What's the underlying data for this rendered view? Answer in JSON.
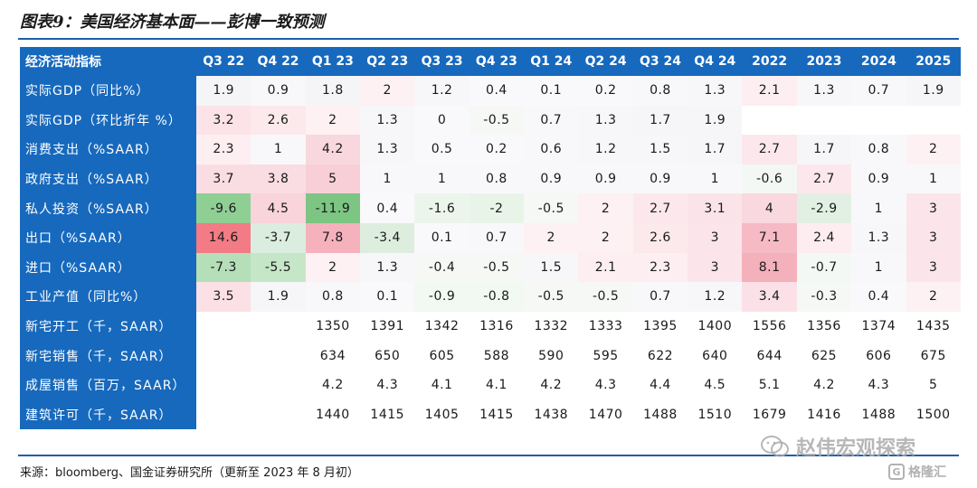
{
  "title": "图表9：美国经济基本面——彭博一致预测",
  "table": {
    "corner_label": "经济活动指标",
    "columns": [
      "Q3 22",
      "Q4 22",
      "Q1 23",
      "Q2 23",
      "Q3 23",
      "Q4 23",
      "Q1 24",
      "Q2 24",
      "Q3 24",
      "Q4 24",
      "2022",
      "2023",
      "2024",
      "2025"
    ],
    "rows": [
      {
        "label": "实际GDP（同比%）",
        "cells": [
          {
            "v": "1.9",
            "bg": "#f5f5f7"
          },
          {
            "v": "0.9",
            "bg": "#f8f8fa"
          },
          {
            "v": "1.8",
            "bg": "#f5f5f7"
          },
          {
            "v": "2",
            "bg": "#fdf1f3"
          },
          {
            "v": "1.2",
            "bg": "#f7f7f9"
          },
          {
            "v": "0.4",
            "bg": "#f9f9fb"
          },
          {
            "v": "0.1",
            "bg": "#f9f9fb"
          },
          {
            "v": "0.2",
            "bg": "#f9f9fb"
          },
          {
            "v": "0.8",
            "bg": "#f8f8fa"
          },
          {
            "v": "1.3",
            "bg": "#f7f7f9"
          },
          {
            "v": "2.1",
            "bg": "#fdeef1"
          },
          {
            "v": "1.3",
            "bg": "#f7f7f9"
          },
          {
            "v": "0.7",
            "bg": "#f8f8fa"
          },
          {
            "v": "1.9",
            "bg": "#f6f6f8"
          }
        ]
      },
      {
        "label": "实际GDP（环比折年 %）",
        "cells": [
          {
            "v": "3.2",
            "bg": "#fbe3e8"
          },
          {
            "v": "2.6",
            "bg": "#fce9ec"
          },
          {
            "v": "2",
            "bg": "#fdf1f3"
          },
          {
            "v": "1.3",
            "bg": "#f7f7f9"
          },
          {
            "v": "0",
            "bg": "#f9f9fb"
          },
          {
            "v": "-0.5",
            "bg": "#f5f8f5"
          },
          {
            "v": "0.7",
            "bg": "#f8f8fa"
          },
          {
            "v": "1.3",
            "bg": "#f7f7f9"
          },
          {
            "v": "1.7",
            "bg": "#f6f6f8"
          },
          {
            "v": "1.9",
            "bg": "#f6f6f8"
          },
          {
            "v": "",
            "bg": "#ffffff"
          },
          {
            "v": "",
            "bg": "#ffffff"
          },
          {
            "v": "",
            "bg": "#ffffff"
          },
          {
            "v": "",
            "bg": "#ffffff"
          }
        ]
      },
      {
        "label": "消费支出（%SAAR）",
        "cells": [
          {
            "v": "2.3",
            "bg": "#fdeef1"
          },
          {
            "v": "1",
            "bg": "#f8f8fa"
          },
          {
            "v": "4.2",
            "bg": "#f9d7de"
          },
          {
            "v": "1.3",
            "bg": "#f7f7f9"
          },
          {
            "v": "0.5",
            "bg": "#f9f9fb"
          },
          {
            "v": "0.2",
            "bg": "#f9f9fb"
          },
          {
            "v": "0.6",
            "bg": "#f8f8fa"
          },
          {
            "v": "1.2",
            "bg": "#f7f7f9"
          },
          {
            "v": "1.5",
            "bg": "#f7f7f9"
          },
          {
            "v": "1.7",
            "bg": "#f6f6f8"
          },
          {
            "v": "2.7",
            "bg": "#fce8ec"
          },
          {
            "v": "1.7",
            "bg": "#f6f6f8"
          },
          {
            "v": "0.8",
            "bg": "#f8f8fa"
          },
          {
            "v": "2",
            "bg": "#fdf1f3"
          }
        ]
      },
      {
        "label": "政府支出（%SAAR）",
        "cells": [
          {
            "v": "3.7",
            "bg": "#fadde3"
          },
          {
            "v": "3.8",
            "bg": "#fadde3"
          },
          {
            "v": "5",
            "bg": "#f8cfd7"
          },
          {
            "v": "1",
            "bg": "#f8f8fa"
          },
          {
            "v": "1",
            "bg": "#f8f8fa"
          },
          {
            "v": "0.8",
            "bg": "#f8f8fa"
          },
          {
            "v": "0.9",
            "bg": "#f8f8fa"
          },
          {
            "v": "0.9",
            "bg": "#f8f8fa"
          },
          {
            "v": "0.9",
            "bg": "#f8f8fa"
          },
          {
            "v": "1",
            "bg": "#f8f8fa"
          },
          {
            "v": "-0.6",
            "bg": "#f4f8f4"
          },
          {
            "v": "2.7",
            "bg": "#fce8ec"
          },
          {
            "v": "0.9",
            "bg": "#f8f8fa"
          },
          {
            "v": "1",
            "bg": "#f8f8fa"
          }
        ]
      },
      {
        "label": "私人投资（%SAAR）",
        "cells": [
          {
            "v": "-9.6",
            "bg": "#8fcf94"
          },
          {
            "v": "4.5",
            "bg": "#f9d4db"
          },
          {
            "v": "-11.9",
            "bg": "#7cc583"
          },
          {
            "v": "0.4",
            "bg": "#f9f9fb"
          },
          {
            "v": "-1.6",
            "bg": "#ecf5ec"
          },
          {
            "v": "-2",
            "bg": "#e9f4e9"
          },
          {
            "v": "-0.5",
            "bg": "#f5f8f5"
          },
          {
            "v": "2",
            "bg": "#fdf1f3"
          },
          {
            "v": "2.7",
            "bg": "#fce8ec"
          },
          {
            "v": "3.1",
            "bg": "#fbe4e9"
          },
          {
            "v": "4",
            "bg": "#f9d8df"
          },
          {
            "v": "-2.9",
            "bg": "#e1f0e2"
          },
          {
            "v": "1",
            "bg": "#f8f8fa"
          },
          {
            "v": "3",
            "bg": "#fbe5ea"
          }
        ]
      },
      {
        "label": "出口（%SAAR）",
        "cells": [
          {
            "v": "14.6",
            "bg": "#f27b85"
          },
          {
            "v": "-3.7",
            "bg": "#dbedde"
          },
          {
            "v": "7.8",
            "bg": "#f5b2bd"
          },
          {
            "v": "-3.4",
            "bg": "#ddeedf"
          },
          {
            "v": "0.1",
            "bg": "#f9f9fb"
          },
          {
            "v": "0.7",
            "bg": "#f8f8fa"
          },
          {
            "v": "2",
            "bg": "#fdf1f3"
          },
          {
            "v": "2",
            "bg": "#fdf1f3"
          },
          {
            "v": "2.6",
            "bg": "#fce9ec"
          },
          {
            "v": "3",
            "bg": "#fbe5ea"
          },
          {
            "v": "7.1",
            "bg": "#f6bac4"
          },
          {
            "v": "2.4",
            "bg": "#fdedf0"
          },
          {
            "v": "1.3",
            "bg": "#f7f7f9"
          },
          {
            "v": "3",
            "bg": "#fbe5ea"
          }
        ]
      },
      {
        "label": "进口（%SAAR）",
        "cells": [
          {
            "v": "-7.3",
            "bg": "#b5dfb8"
          },
          {
            "v": "-5.5",
            "bg": "#c6e6c8"
          },
          {
            "v": "2",
            "bg": "#fdf1f3"
          },
          {
            "v": "1.3",
            "bg": "#f7f7f9"
          },
          {
            "v": "-0.4",
            "bg": "#f6f8f6"
          },
          {
            "v": "-0.5",
            "bg": "#f5f8f5"
          },
          {
            "v": "1.5",
            "bg": "#f7f7f9"
          },
          {
            "v": "2.1",
            "bg": "#fdeef1"
          },
          {
            "v": "2.3",
            "bg": "#fdeef1"
          },
          {
            "v": "3",
            "bg": "#fbe5ea"
          },
          {
            "v": "8.1",
            "bg": "#f4b0bb"
          },
          {
            "v": "-0.7",
            "bg": "#f4f8f4"
          },
          {
            "v": "1",
            "bg": "#f8f8fa"
          },
          {
            "v": "3",
            "bg": "#fbe5ea"
          }
        ]
      },
      {
        "label": "工业产值（同比%）",
        "cells": [
          {
            "v": "3.5",
            "bg": "#fbe0e6"
          },
          {
            "v": "1.9",
            "bg": "#f6f6f8"
          },
          {
            "v": "0.8",
            "bg": "#f8f8fa"
          },
          {
            "v": "0.1",
            "bg": "#f9f9fb"
          },
          {
            "v": "-0.9",
            "bg": "#f2f8f2"
          },
          {
            "v": "-0.8",
            "bg": "#f2f8f2"
          },
          {
            "v": "-0.5",
            "bg": "#f5f8f5"
          },
          {
            "v": "-0.5",
            "bg": "#f5f8f5"
          },
          {
            "v": "0.7",
            "bg": "#f8f8fa"
          },
          {
            "v": "1.2",
            "bg": "#f7f7f9"
          },
          {
            "v": "3.4",
            "bg": "#fbe1e7"
          },
          {
            "v": "-0.3",
            "bg": "#f6f8f6"
          },
          {
            "v": "0.4",
            "bg": "#f9f9fb"
          },
          {
            "v": "2",
            "bg": "#fdf1f3"
          }
        ]
      },
      {
        "label": "新宅开工（千，SAAR）",
        "cells": [
          {
            "v": "",
            "bg": "#ffffff"
          },
          {
            "v": "",
            "bg": "#ffffff"
          },
          {
            "v": "1350",
            "bg": "#ffffff"
          },
          {
            "v": "1391",
            "bg": "#ffffff"
          },
          {
            "v": "1342",
            "bg": "#ffffff"
          },
          {
            "v": "1316",
            "bg": "#ffffff"
          },
          {
            "v": "1332",
            "bg": "#ffffff"
          },
          {
            "v": "1333",
            "bg": "#ffffff"
          },
          {
            "v": "1395",
            "bg": "#ffffff"
          },
          {
            "v": "1400",
            "bg": "#ffffff"
          },
          {
            "v": "1556",
            "bg": "#ffffff"
          },
          {
            "v": "1356",
            "bg": "#ffffff"
          },
          {
            "v": "1374",
            "bg": "#ffffff"
          },
          {
            "v": "1435",
            "bg": "#ffffff"
          }
        ]
      },
      {
        "label": "新宅销售（千，SAAR）",
        "cells": [
          {
            "v": "",
            "bg": "#ffffff"
          },
          {
            "v": "",
            "bg": "#ffffff"
          },
          {
            "v": "634",
            "bg": "#ffffff"
          },
          {
            "v": "650",
            "bg": "#ffffff"
          },
          {
            "v": "605",
            "bg": "#ffffff"
          },
          {
            "v": "588",
            "bg": "#ffffff"
          },
          {
            "v": "590",
            "bg": "#ffffff"
          },
          {
            "v": "595",
            "bg": "#ffffff"
          },
          {
            "v": "622",
            "bg": "#ffffff"
          },
          {
            "v": "640",
            "bg": "#ffffff"
          },
          {
            "v": "644",
            "bg": "#ffffff"
          },
          {
            "v": "625",
            "bg": "#ffffff"
          },
          {
            "v": "606",
            "bg": "#ffffff"
          },
          {
            "v": "675",
            "bg": "#ffffff"
          }
        ]
      },
      {
        "label": "成屋销售（百万，SAAR）",
        "cells": [
          {
            "v": "",
            "bg": "#ffffff"
          },
          {
            "v": "",
            "bg": "#ffffff"
          },
          {
            "v": "4.2",
            "bg": "#ffffff"
          },
          {
            "v": "4.3",
            "bg": "#ffffff"
          },
          {
            "v": "4.1",
            "bg": "#ffffff"
          },
          {
            "v": "4.1",
            "bg": "#ffffff"
          },
          {
            "v": "4.2",
            "bg": "#ffffff"
          },
          {
            "v": "4.3",
            "bg": "#ffffff"
          },
          {
            "v": "4.4",
            "bg": "#ffffff"
          },
          {
            "v": "4.5",
            "bg": "#ffffff"
          },
          {
            "v": "5.1",
            "bg": "#ffffff"
          },
          {
            "v": "4.2",
            "bg": "#ffffff"
          },
          {
            "v": "4.3",
            "bg": "#ffffff"
          },
          {
            "v": "5",
            "bg": "#ffffff"
          }
        ]
      },
      {
        "label": "建筑许可（千，SAAR）",
        "cells": [
          {
            "v": "",
            "bg": "#ffffff"
          },
          {
            "v": "",
            "bg": "#ffffff"
          },
          {
            "v": "1440",
            "bg": "#ffffff"
          },
          {
            "v": "1415",
            "bg": "#ffffff"
          },
          {
            "v": "1405",
            "bg": "#ffffff"
          },
          {
            "v": "1415",
            "bg": "#ffffff"
          },
          {
            "v": "1438",
            "bg": "#ffffff"
          },
          {
            "v": "1470",
            "bg": "#ffffff"
          },
          {
            "v": "1488",
            "bg": "#ffffff"
          },
          {
            "v": "1510",
            "bg": "#ffffff"
          },
          {
            "v": "1679",
            "bg": "#ffffff"
          },
          {
            "v": "1416",
            "bg": "#ffffff"
          },
          {
            "v": "1488",
            "bg": "#ffffff"
          },
          {
            "v": "1500",
            "bg": "#ffffff"
          }
        ]
      }
    ]
  },
  "source": "来源：bloomberg、国金证券研究所（更新至 2023 年 8 月初）",
  "watermark_main": "赵伟宏观探索",
  "watermark_small": "格隆汇",
  "watermark_small_icon": "G",
  "colors": {
    "header_blue": "#1769bd",
    "rule_blue": "#1f5fa8",
    "positive": "#f27b85",
    "negative": "#7cc583"
  }
}
